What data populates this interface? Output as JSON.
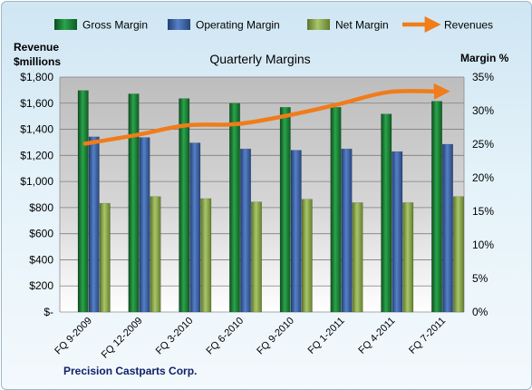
{
  "chart_data": {
    "type": "bar",
    "title": "Quarterly Margins",
    "ylabel_left_line1": "Revenue",
    "ylabel_left_line2": "$millions",
    "ylabel_right": "Margin %",
    "source": "Precision Castparts Corp.",
    "categories": [
      "FQ 9-2009",
      "FQ 12-2009",
      "FQ 3-2010",
      "FQ 6-2010",
      "FQ 9-2010",
      "FQ 1-2011",
      "FQ 4-2011",
      "FQ 7-2011"
    ],
    "y_left": {
      "min": 0,
      "max": 1800,
      "step": 200,
      "tick_labels": [
        "$-",
        "$200",
        "$400",
        "$600",
        "$800",
        "$1,000",
        "$1,200",
        "$1,400",
        "$1,600",
        "$1,800"
      ]
    },
    "y_right": {
      "min": 0,
      "max": 35,
      "step": 5,
      "tick_labels": [
        "0%",
        "5%",
        "10%",
        "15%",
        "20%",
        "25%",
        "30%",
        "35%"
      ]
    },
    "series": [
      {
        "name": "Gross Margin",
        "type": "bar",
        "axis": "right",
        "color": "#1a7a34",
        "values": [
          33.0,
          32.5,
          31.8,
          31.1,
          30.5,
          30.5,
          29.5,
          31.4
        ]
      },
      {
        "name": "Operating Margin",
        "type": "bar",
        "axis": "right",
        "color": "#3a64a8",
        "values": [
          26.1,
          26.0,
          25.2,
          24.3,
          24.1,
          24.3,
          23.9,
          25.0
        ]
      },
      {
        "name": "Net Margin",
        "type": "bar",
        "axis": "right",
        "color": "#8aa84a",
        "values": [
          16.2,
          17.2,
          16.9,
          16.4,
          16.8,
          16.3,
          16.3,
          17.2
        ]
      },
      {
        "name": "Revenues",
        "type": "line",
        "axis": "left",
        "color": "#f07c1a",
        "values": [
          1290,
          1355,
          1430,
          1440,
          1505,
          1590,
          1685,
          1690
        ]
      }
    ],
    "legend": [
      "Gross Margin",
      "Operating Margin",
      "Net Margin",
      "Revenues"
    ],
    "legend_position": "top",
    "grid": true
  }
}
